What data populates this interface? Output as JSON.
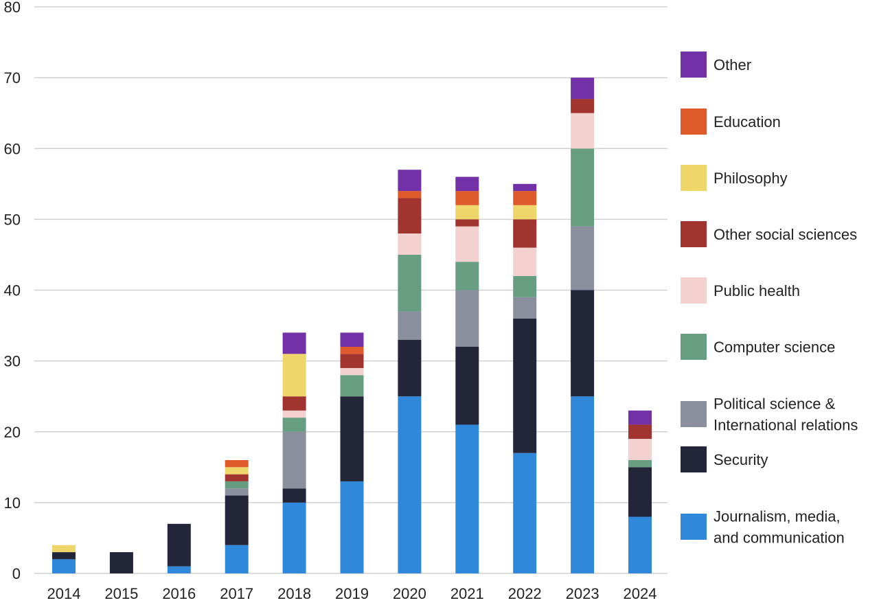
{
  "chart_data": {
    "type": "bar",
    "stacked": true,
    "categories": [
      "2014",
      "2015",
      "2016",
      "2017",
      "2018",
      "2019",
      "2020",
      "2021",
      "2022",
      "2023",
      "2024"
    ],
    "ylim": [
      0,
      80
    ],
    "yticks": [
      0,
      10,
      20,
      30,
      40,
      50,
      60,
      70,
      80
    ],
    "grid": true,
    "legend_placement": "right",
    "series": [
      {
        "name": "Journalism, media, and communication",
        "label_lines": [
          "Journalism, media,",
          "and communication"
        ],
        "color": "#3088DB",
        "values": [
          2,
          0,
          1,
          4,
          10,
          13,
          25,
          21,
          17,
          25,
          8
        ]
      },
      {
        "name": "Security",
        "label_lines": [
          "Security"
        ],
        "color": "#232639",
        "values": [
          1,
          3,
          6,
          7,
          2,
          12,
          8,
          11,
          19,
          15,
          7
        ]
      },
      {
        "name": "Political science & International relations",
        "label_lines": [
          "Political science &",
          "International relations"
        ],
        "color": "#8A8F9E",
        "values": [
          0,
          0,
          0,
          1,
          8,
          0,
          4,
          8,
          3,
          9,
          0
        ]
      },
      {
        "name": "Computer science",
        "label_lines": [
          "Computer science"
        ],
        "color": "#679E82",
        "values": [
          0,
          0,
          0,
          1,
          2,
          3,
          8,
          4,
          3,
          11,
          1
        ]
      },
      {
        "name": "Public health",
        "label_lines": [
          "Public health"
        ],
        "color": "#F2D1CF",
        "values": [
          0,
          0,
          0,
          0,
          1,
          1,
          3,
          5,
          4,
          5,
          3
        ]
      },
      {
        "name": "Other social sciences",
        "label_lines": [
          "Other social sciences"
        ],
        "color": "#A1342E",
        "values": [
          0,
          0,
          0,
          1,
          2,
          2,
          5,
          1,
          4,
          2,
          2
        ]
      },
      {
        "name": "Philosophy",
        "label_lines": [
          "Philosophy"
        ],
        "color": "#EFD66B",
        "values": [
          1,
          0,
          0,
          1,
          6,
          0,
          0,
          2,
          2,
          0,
          0
        ]
      },
      {
        "name": "Education",
        "label_lines": [
          "Education"
        ],
        "color": "#DF5A2A",
        "values": [
          0,
          0,
          0,
          1,
          0,
          1,
          1,
          2,
          2,
          0,
          0
        ]
      },
      {
        "name": "Other",
        "label_lines": [
          "Other"
        ],
        "color": "#7231A6",
        "values": [
          0,
          0,
          0,
          0,
          3,
          2,
          3,
          2,
          1,
          3,
          2
        ]
      }
    ]
  }
}
